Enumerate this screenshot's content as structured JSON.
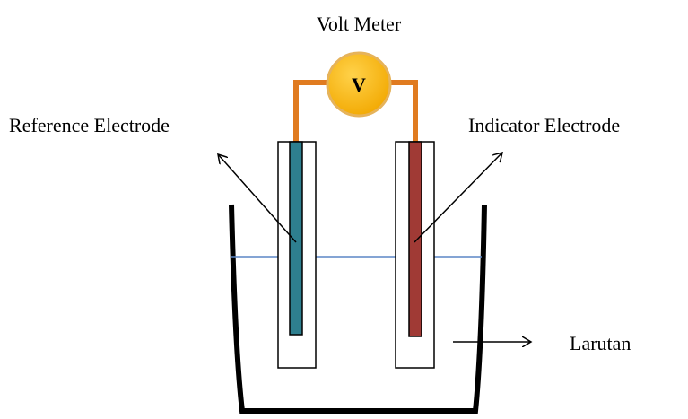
{
  "title": "Volt Meter",
  "meter_symbol": "V",
  "labels": {
    "reference": "Reference Electrode",
    "indicator": "Indicator Electrode",
    "solution": "Larutan"
  }
}
